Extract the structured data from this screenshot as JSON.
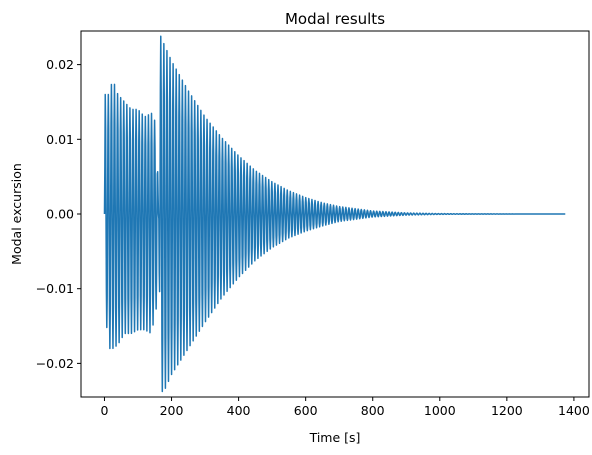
{
  "chart_data": {
    "type": "line",
    "title": "Modal results",
    "xlabel": "Time [s]",
    "ylabel": "Modal excursion",
    "xlim": [
      -70,
      1445
    ],
    "ylim": [
      -0.0245,
      0.0245
    ],
    "xticks": [
      0,
      200,
      400,
      600,
      800,
      1000,
      1200,
      1400
    ],
    "xtick_labels": [
      "0",
      "200",
      "400",
      "600",
      "800",
      "1000",
      "1200",
      "1400"
    ],
    "yticks": [
      -0.02,
      -0.01,
      0.0,
      0.01,
      0.02
    ],
    "ytick_labels": [
      "−0.02",
      "−0.01",
      "0.00",
      "0.01",
      "0.02"
    ],
    "grid": false,
    "series": [
      {
        "color": "#1f77b4",
        "oscillation_period": 9.2,
        "envelope_x": [
          0,
          2,
          12,
          25,
          40,
          60,
          80,
          100,
          120,
          140,
          155,
          162,
          166,
          180,
          200,
          250,
          300,
          350,
          400,
          450,
          500,
          550,
          600,
          650,
          700,
          800,
          900,
          1000,
          1100,
          1200,
          1375
        ],
        "envelope_max": [
          0.0,
          0.016,
          0.016,
          0.018,
          0.016,
          0.015,
          0.014,
          0.014,
          0.013,
          0.0135,
          0.012,
          0.0,
          0.024,
          0.0225,
          0.0205,
          0.0165,
          0.013,
          0.0102,
          0.0078,
          0.0058,
          0.0043,
          0.0031,
          0.0022,
          0.0015,
          0.001,
          0.0004,
          0.00015,
          5e-05,
          2e-05,
          1e-05,
          0.0
        ],
        "envelope_min": [
          0.0,
          -0.0125,
          -0.018,
          -0.018,
          -0.0175,
          -0.016,
          -0.016,
          -0.0155,
          -0.0155,
          -0.016,
          -0.0125,
          0.0,
          -0.024,
          -0.0235,
          -0.0215,
          -0.018,
          -0.0145,
          -0.0112,
          -0.0085,
          -0.0062,
          -0.0045,
          -0.0032,
          -0.0023,
          -0.0016,
          -0.001,
          -0.0004,
          -0.00015,
          -5e-05,
          -2e-05,
          -1e-05,
          0.0
        ]
      }
    ]
  }
}
